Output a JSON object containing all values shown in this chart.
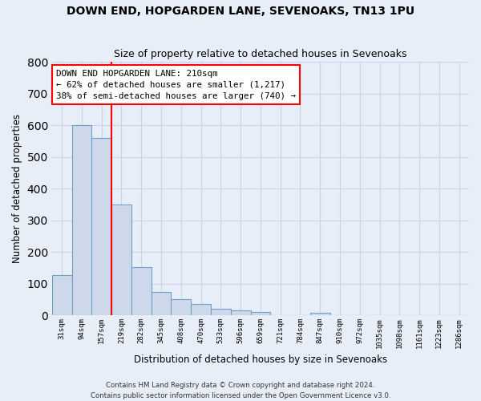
{
  "title": "DOWN END, HOPGARDEN LANE, SEVENOAKS, TN13 1PU",
  "subtitle": "Size of property relative to detached houses in Sevenoaks",
  "xlabel": "Distribution of detached houses by size in Sevenoaks",
  "ylabel": "Number of detached properties",
  "bar_labels": [
    "31sqm",
    "94sqm",
    "157sqm",
    "219sqm",
    "282sqm",
    "345sqm",
    "408sqm",
    "470sqm",
    "533sqm",
    "596sqm",
    "659sqm",
    "721sqm",
    "784sqm",
    "847sqm",
    "910sqm",
    "972sqm",
    "1035sqm",
    "1098sqm",
    "1161sqm",
    "1223sqm",
    "1286sqm"
  ],
  "bar_values": [
    128,
    600,
    560,
    350,
    152,
    75,
    52,
    35,
    20,
    15,
    12,
    0,
    0,
    8,
    0,
    0,
    0,
    0,
    0,
    0,
    0
  ],
  "bar_color": "#cdd9ea",
  "bar_edge_color": "#6fa0c8",
  "vline_color": "red",
  "ylim": [
    0,
    800
  ],
  "yticks": [
    0,
    100,
    200,
    300,
    400,
    500,
    600,
    700,
    800
  ],
  "annotation_title": "DOWN END HOPGARDEN LANE: 210sqm",
  "annotation_line1": "← 62% of detached houses are smaller (1,217)",
  "annotation_line2": "38% of semi-detached houses are larger (740) →",
  "footer_line1": "Contains HM Land Registry data © Crown copyright and database right 2024.",
  "footer_line2": "Contains public sector information licensed under the Open Government Licence v3.0.",
  "bg_color": "#e8eef8",
  "plot_bg_color": "#e8eef8",
  "grid_color": "#c8d4e8"
}
